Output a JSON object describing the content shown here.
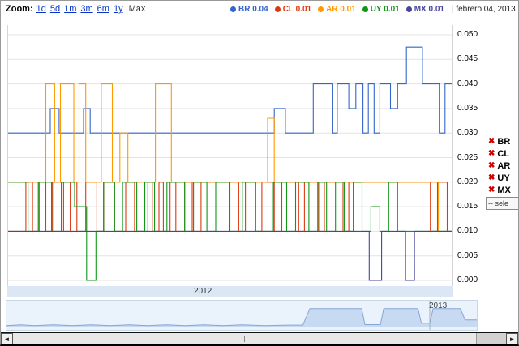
{
  "header": {
    "zoom_label": "Zoom:",
    "zoom_links": [
      "1d",
      "5d",
      "1m",
      "3m",
      "6m",
      "1y"
    ],
    "zoom_max": "Max",
    "legend": [
      {
        "name": "BR",
        "value": "0.04",
        "color": "#3366cc"
      },
      {
        "name": "CL",
        "value": "0.01",
        "color": "#dc3912"
      },
      {
        "name": "AR",
        "value": "0.01",
        "color": "#ff9900"
      },
      {
        "name": "UY",
        "value": "0.01",
        "color": "#109618"
      },
      {
        "name": "MX",
        "value": "0.01",
        "color": "#46469b"
      }
    ],
    "date_label": "| febrero 04, 2013"
  },
  "side_panel": {
    "remove_icon": "✖",
    "items": [
      {
        "label": "BR"
      },
      {
        "label": "CL"
      },
      {
        "label": "AR"
      },
      {
        "label": "UY"
      },
      {
        "label": "MX"
      }
    ],
    "select_label": "-- sele"
  },
  "axis": {
    "y_ticks": [
      "0.050",
      "0.045",
      "0.040",
      "0.035",
      "0.030",
      "0.025",
      "0.020",
      "0.015",
      "0.010",
      "0.005",
      "0.000"
    ],
    "x_year_main": "2012",
    "x_year_nav": "2013"
  },
  "scrollbar": {
    "left_arrow": "◄",
    "right_arrow": "►"
  },
  "chart_data": {
    "type": "line",
    "step": true,
    "title": "",
    "xlabel": "",
    "ylabel": "",
    "ylim": [
      0,
      0.05
    ],
    "y_ticks": [
      0.05,
      0.045,
      0.04,
      0.035,
      0.03,
      0.025,
      0.02,
      0.015,
      0.01,
      0.005,
      0
    ],
    "x_year_labels": [
      "2012",
      "2013"
    ],
    "grid": true,
    "legend_position": "top",
    "series": [
      {
        "name": "BR",
        "color": "#3366cc",
        "current": 0.04,
        "points": [
          [
            0,
            0.03
          ],
          [
            0.095,
            0.035
          ],
          [
            0.115,
            0.03
          ],
          [
            0.17,
            0.035
          ],
          [
            0.185,
            0.03
          ],
          [
            0.6,
            0.035
          ],
          [
            0.625,
            0.03
          ],
          [
            0.688,
            0.04
          ],
          [
            0.732,
            0.03
          ],
          [
            0.742,
            0.04
          ],
          [
            0.768,
            0.035
          ],
          [
            0.784,
            0.04
          ],
          [
            0.8,
            0.03
          ],
          [
            0.812,
            0.04
          ],
          [
            0.825,
            0.03
          ],
          [
            0.838,
            0.04
          ],
          [
            0.862,
            0.035
          ],
          [
            0.878,
            0.04
          ],
          [
            0.898,
            0.0475
          ],
          [
            0.934,
            0.04
          ],
          [
            0.972,
            0.03
          ],
          [
            0.985,
            0.04
          ],
          [
            1,
            0.04
          ]
        ]
      },
      {
        "name": "CL",
        "color": "#dc3912",
        "current": 0.01,
        "points": [
          [
            0,
            0.01
          ],
          [
            0.04,
            0.02
          ],
          [
            0.055,
            0.01
          ],
          [
            0.07,
            0.02
          ],
          [
            0.085,
            0.01
          ],
          [
            0.1,
            0.02
          ],
          [
            0.125,
            0.01
          ],
          [
            0.14,
            0.02
          ],
          [
            0.155,
            0.01
          ],
          [
            0.175,
            0.02
          ],
          [
            0.2,
            0.01
          ],
          [
            0.215,
            0.02
          ],
          [
            0.24,
            0.01
          ],
          [
            0.265,
            0.02
          ],
          [
            0.285,
            0.01
          ],
          [
            0.315,
            0.02
          ],
          [
            0.325,
            0.01
          ],
          [
            0.34,
            0.02
          ],
          [
            0.35,
            0.01
          ],
          [
            0.365,
            0.02
          ],
          [
            0.378,
            0.01
          ],
          [
            0.398,
            0.02
          ],
          [
            0.415,
            0.01
          ],
          [
            0.435,
            0.02
          ],
          [
            0.52,
            0.01
          ],
          [
            0.535,
            0.02
          ],
          [
            0.558,
            0.01
          ],
          [
            0.572,
            0.02
          ],
          [
            0.6,
            0.01
          ],
          [
            0.617,
            0.02
          ],
          [
            0.655,
            0.01
          ],
          [
            0.668,
            0.02
          ],
          [
            0.7,
            0.01
          ],
          [
            0.713,
            0.02
          ],
          [
            0.755,
            0.01
          ],
          [
            0.768,
            0.02
          ],
          [
            0.952,
            0.01
          ],
          [
            0.968,
            0.02
          ],
          [
            0.99,
            0.01
          ],
          [
            1,
            0.01
          ]
        ]
      },
      {
        "name": "AR",
        "color": "#ff9900",
        "current": 0.01,
        "points": [
          [
            0,
            0.02
          ],
          [
            0.085,
            0.04
          ],
          [
            0.105,
            0.02
          ],
          [
            0.118,
            0.04
          ],
          [
            0.148,
            0.02
          ],
          [
            0.16,
            0.04
          ],
          [
            0.175,
            0.02
          ],
          [
            0.21,
            0.04
          ],
          [
            0.235,
            0.02
          ],
          [
            0.252,
            0.03
          ],
          [
            0.27,
            0.02
          ],
          [
            0.332,
            0.04
          ],
          [
            0.368,
            0.02
          ],
          [
            0.585,
            0.033
          ],
          [
            0.6,
            0.02
          ],
          [
            0.97,
            0.01
          ],
          [
            1,
            0.01
          ]
        ]
      },
      {
        "name": "UY",
        "color": "#109618",
        "current": 0.01,
        "points": [
          [
            0,
            0.02
          ],
          [
            0.045,
            0.01
          ],
          [
            0.068,
            0.02
          ],
          [
            0.098,
            0.01
          ],
          [
            0.12,
            0.02
          ],
          [
            0.15,
            0.015
          ],
          [
            0.177,
            0
          ],
          [
            0.198,
            0.01
          ],
          [
            0.218,
            0.02
          ],
          [
            0.24,
            0.01
          ],
          [
            0.258,
            0.02
          ],
          [
            0.29,
            0.01
          ],
          [
            0.308,
            0.02
          ],
          [
            0.33,
            0.01
          ],
          [
            0.358,
            0.02
          ],
          [
            0.398,
            0.01
          ],
          [
            0.418,
            0.02
          ],
          [
            0.448,
            0.01
          ],
          [
            0.468,
            0.02
          ],
          [
            0.5,
            0.01
          ],
          [
            0.528,
            0.02
          ],
          [
            0.558,
            0.01
          ],
          [
            0.598,
            0.02
          ],
          [
            0.628,
            0.01
          ],
          [
            0.648,
            0.02
          ],
          [
            0.678,
            0.01
          ],
          [
            0.698,
            0.02
          ],
          [
            0.718,
            0.01
          ],
          [
            0.738,
            0.02
          ],
          [
            0.758,
            0.01
          ],
          [
            0.778,
            0.02
          ],
          [
            0.798,
            0.01
          ],
          [
            0.818,
            0.015
          ],
          [
            0.838,
            0.01
          ],
          [
            0.858,
            0.02
          ],
          [
            0.878,
            0.01
          ],
          [
            1,
            0.01
          ]
        ]
      },
      {
        "name": "MX",
        "color": "#46469b",
        "current": 0.01,
        "points": [
          [
            0,
            0.01
          ],
          [
            0.814,
            0
          ],
          [
            0.842,
            0.01
          ],
          [
            0.896,
            0
          ],
          [
            0.916,
            0.01
          ],
          [
            1,
            0.01
          ]
        ]
      }
    ],
    "navigator": {
      "fill_color": "#c7daf1",
      "line_color": "#85a6d6",
      "points": [
        [
          0,
          0.08
        ],
        [
          0.03,
          0.11
        ],
        [
          0.06,
          0.08
        ],
        [
          0.1,
          0.11
        ],
        [
          0.14,
          0.08
        ],
        [
          0.18,
          0.11
        ],
        [
          0.22,
          0.08
        ],
        [
          0.26,
          0.11
        ],
        [
          0.3,
          0.08
        ],
        [
          0.34,
          0.11
        ],
        [
          0.38,
          0.08
        ],
        [
          0.42,
          0.11
        ],
        [
          0.46,
          0.08
        ],
        [
          0.5,
          0.11
        ],
        [
          0.55,
          0.08
        ],
        [
          0.6,
          0.1
        ],
        [
          0.63,
          0.1
        ],
        [
          0.645,
          0.8
        ],
        [
          0.755,
          0.8
        ],
        [
          0.762,
          0.12
        ],
        [
          0.795,
          0.12
        ],
        [
          0.802,
          0.8
        ],
        [
          0.875,
          0.8
        ],
        [
          0.882,
          0.18
        ],
        [
          0.9,
          0.18
        ],
        [
          0.907,
          0.8
        ],
        [
          0.965,
          0.8
        ],
        [
          0.975,
          0.32
        ],
        [
          1,
          0.32
        ]
      ]
    }
  }
}
